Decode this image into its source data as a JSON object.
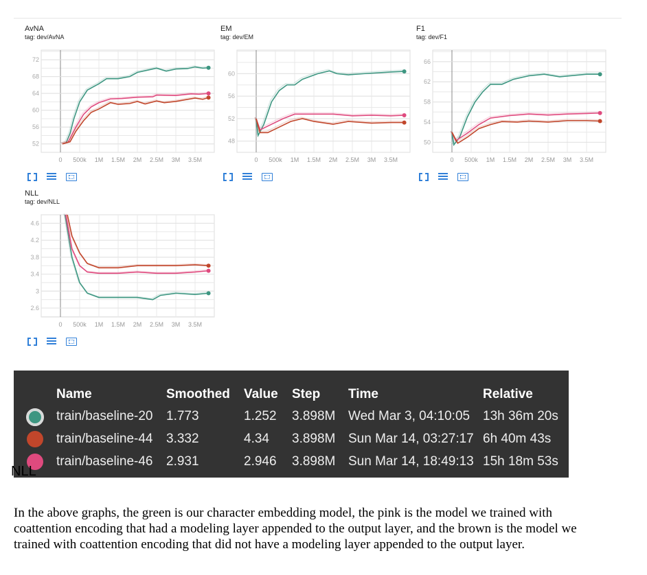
{
  "colors": {
    "green": "#3d9681",
    "brown": "#c1462b",
    "pink": "#df4a7e"
  },
  "chart_data": [
    {
      "type": "line",
      "title": "AvNA",
      "tag": "tag: dev/AvNA",
      "ylim": [
        50,
        74.3
      ],
      "yticks": [
        52,
        56,
        60,
        64,
        68,
        72
      ],
      "xlim": [
        -0.5,
        4.0
      ],
      "xticks": [
        0,
        0.5,
        1,
        1.5,
        2,
        2.5,
        3,
        3.5
      ],
      "xticklabels": [
        "0",
        "500k",
        "1M",
        "1.5M",
        "2M",
        "2.5M",
        "3M",
        "3.5M"
      ],
      "series": [
        {
          "name": "train/baseline-20",
          "color": "green",
          "points": [
            [
              0.05,
              52
            ],
            [
              0.15,
              52.3
            ],
            [
              0.25,
              54.5
            ],
            [
              0.35,
              58
            ],
            [
              0.5,
              62
            ],
            [
              0.7,
              64.8
            ],
            [
              1.0,
              66.3
            ],
            [
              1.2,
              67.5
            ],
            [
              1.5,
              67.5
            ],
            [
              1.8,
              68
            ],
            [
              2.0,
              69
            ],
            [
              2.3,
              69.6
            ],
            [
              2.5,
              70
            ],
            [
              2.75,
              69.3
            ],
            [
              3.0,
              69.8
            ],
            [
              3.3,
              69.9
            ],
            [
              3.5,
              70.3
            ],
            [
              3.7,
              70
            ],
            [
              3.85,
              70.1
            ]
          ]
        },
        {
          "name": "train/baseline-46",
          "color": "pink",
          "points": [
            [
              0.05,
              52
            ],
            [
              0.2,
              52.4
            ],
            [
              0.4,
              56
            ],
            [
              0.6,
              59
            ],
            [
              0.8,
              60.8
            ],
            [
              1.0,
              61.8
            ],
            [
              1.3,
              62.7
            ],
            [
              1.6,
              62.8
            ],
            [
              2.0,
              63.1
            ],
            [
              2.4,
              63.2
            ],
            [
              2.5,
              63.6
            ],
            [
              3.0,
              63.5
            ],
            [
              3.4,
              63.9
            ],
            [
              3.6,
              63.8
            ],
            [
              3.85,
              64
            ]
          ]
        },
        {
          "name": "train/baseline-44",
          "color": "brown",
          "points": [
            [
              0.05,
              52
            ],
            [
              0.25,
              52.5
            ],
            [
              0.4,
              55
            ],
            [
              0.6,
              57.5
            ],
            [
              0.8,
              59.5
            ],
            [
              1.0,
              60.3
            ],
            [
              1.3,
              61.8
            ],
            [
              1.5,
              61.4
            ],
            [
              1.8,
              61.6
            ],
            [
              2.0,
              62.1
            ],
            [
              2.2,
              61.5
            ],
            [
              2.5,
              62.2
            ],
            [
              2.7,
              61.8
            ],
            [
              3.0,
              62.1
            ],
            [
              3.5,
              62.9
            ],
            [
              3.7,
              62.6
            ],
            [
              3.85,
              63
            ]
          ]
        }
      ]
    },
    {
      "type": "line",
      "title": "EM",
      "tag": "tag: dev/EM",
      "ylim": [
        46,
        64.2
      ],
      "yticks": [
        48,
        52,
        56,
        60
      ],
      "xlim": [
        -0.5,
        4.0
      ],
      "xticks": [
        0,
        0.5,
        1,
        1.5,
        2,
        2.5,
        3,
        3.5
      ],
      "xticklabels": [
        "0",
        "500k",
        "1M",
        "1.5M",
        "2M",
        "2.5M",
        "3M",
        "3.5M"
      ],
      "series": [
        {
          "name": "train/baseline-20",
          "color": "green",
          "points": [
            [
              0.0,
              52
            ],
            [
              0.05,
              49
            ],
            [
              0.2,
              51
            ],
            [
              0.4,
              55
            ],
            [
              0.6,
              57
            ],
            [
              0.8,
              58
            ],
            [
              1.0,
              58
            ],
            [
              1.2,
              59
            ],
            [
              1.4,
              59.5
            ],
            [
              1.6,
              60
            ],
            [
              1.9,
              60.5
            ],
            [
              2.1,
              60
            ],
            [
              2.4,
              59.8
            ],
            [
              2.8,
              60
            ],
            [
              3.5,
              60.3
            ],
            [
              3.85,
              60.4
            ]
          ]
        },
        {
          "name": "train/baseline-46",
          "color": "pink",
          "points": [
            [
              0.0,
              52
            ],
            [
              0.1,
              50
            ],
            [
              0.4,
              51
            ],
            [
              0.7,
              52
            ],
            [
              1.0,
              52.8
            ],
            [
              1.5,
              52.8
            ],
            [
              2.0,
              52.8
            ],
            [
              2.5,
              52.5
            ],
            [
              3.0,
              52.6
            ],
            [
              3.5,
              52.5
            ],
            [
              3.85,
              52.6
            ]
          ]
        },
        {
          "name": "train/baseline-44",
          "color": "brown",
          "points": [
            [
              0.0,
              52
            ],
            [
              0.1,
              49.5
            ],
            [
              0.3,
              49.5
            ],
            [
              0.6,
              50.5
            ],
            [
              0.9,
              51.5
            ],
            [
              1.2,
              52
            ],
            [
              1.5,
              51.5
            ],
            [
              2.0,
              51
            ],
            [
              2.4,
              51.5
            ],
            [
              3.0,
              51.2
            ],
            [
              3.5,
              51.3
            ],
            [
              3.85,
              51.3
            ]
          ]
        }
      ]
    },
    {
      "type": "line",
      "title": "F1",
      "tag": "tag: dev/F1",
      "ylim": [
        48,
        68.3
      ],
      "yticks": [
        50,
        54,
        58,
        62,
        66
      ],
      "xlim": [
        -0.5,
        4.0
      ],
      "xticks": [
        0,
        0.5,
        1,
        1.5,
        2,
        2.5,
        3,
        3.5
      ],
      "xticklabels": [
        "0",
        "500k",
        "1M",
        "1.5M",
        "2M",
        "2.5M",
        "3M",
        "3.5M"
      ],
      "series": [
        {
          "name": "train/baseline-20",
          "color": "green",
          "points": [
            [
              0.0,
              52
            ],
            [
              0.05,
              49.5
            ],
            [
              0.2,
              51
            ],
            [
              0.4,
              55
            ],
            [
              0.6,
              58
            ],
            [
              0.8,
              60
            ],
            [
              1.0,
              61.5
            ],
            [
              1.3,
              61.5
            ],
            [
              1.6,
              62.5
            ],
            [
              2.0,
              63.2
            ],
            [
              2.4,
              63.5
            ],
            [
              2.8,
              63
            ],
            [
              3.5,
              63.5
            ],
            [
              3.85,
              63.5
            ]
          ]
        },
        {
          "name": "train/baseline-46",
          "color": "pink",
          "points": [
            [
              0.0,
              52
            ],
            [
              0.1,
              50.3
            ],
            [
              0.4,
              51.8
            ],
            [
              0.7,
              53.5
            ],
            [
              1.0,
              54.8
            ],
            [
              1.5,
              55.3
            ],
            [
              2.0,
              55.6
            ],
            [
              2.5,
              55.4
            ],
            [
              3.0,
              55.6
            ],
            [
              3.5,
              55.7
            ],
            [
              3.85,
              55.8
            ]
          ]
        },
        {
          "name": "train/baseline-44",
          "color": "brown",
          "points": [
            [
              0.0,
              52
            ],
            [
              0.15,
              49.8
            ],
            [
              0.4,
              51
            ],
            [
              0.7,
              52.7
            ],
            [
              1.0,
              53.5
            ],
            [
              1.3,
              54.1
            ],
            [
              1.7,
              54
            ],
            [
              2.0,
              54.2
            ],
            [
              2.5,
              54
            ],
            [
              3.0,
              54.3
            ],
            [
              3.5,
              54.3
            ],
            [
              3.85,
              54.2
            ]
          ]
        }
      ]
    },
    {
      "type": "line",
      "title": "NLL",
      "tag": "tag: dev/NLL",
      "ylim": [
        2.39,
        4.8
      ],
      "yticks": [
        2.6,
        3,
        3.4,
        3.8,
        4.2,
        4.6
      ],
      "xlim": [
        -0.5,
        4.0
      ],
      "xticks": [
        0,
        0.5,
        1,
        1.5,
        2,
        2.5,
        3,
        3.5
      ],
      "xticklabels": [
        "0",
        "500k",
        "1M",
        "1.5M",
        "2M",
        "2.5M",
        "3M",
        "3.5M"
      ],
      "series": [
        {
          "name": "train/baseline-20",
          "color": "green",
          "points": [
            [
              0.12,
              4.8
            ],
            [
              0.3,
              3.8
            ],
            [
              0.5,
              3.2
            ],
            [
              0.7,
              2.95
            ],
            [
              1.0,
              2.85
            ],
            [
              1.5,
              2.85
            ],
            [
              2.0,
              2.85
            ],
            [
              2.4,
              2.8
            ],
            [
              2.6,
              2.9
            ],
            [
              3.0,
              2.95
            ],
            [
              3.5,
              2.92
            ],
            [
              3.85,
              2.95
            ]
          ]
        },
        {
          "name": "train/baseline-44",
          "color": "brown",
          "points": [
            [
              0.18,
              4.8
            ],
            [
              0.3,
              4.3
            ],
            [
              0.5,
              3.9
            ],
            [
              0.7,
              3.65
            ],
            [
              1.0,
              3.55
            ],
            [
              1.5,
              3.55
            ],
            [
              2.0,
              3.6
            ],
            [
              2.5,
              3.6
            ],
            [
              3.0,
              3.6
            ],
            [
              3.5,
              3.62
            ],
            [
              3.85,
              3.6
            ]
          ]
        },
        {
          "name": "train/baseline-46",
          "color": "pink",
          "points": [
            [
              0.14,
              4.8
            ],
            [
              0.3,
              4.0
            ],
            [
              0.5,
              3.6
            ],
            [
              0.7,
              3.45
            ],
            [
              1.0,
              3.42
            ],
            [
              1.5,
              3.42
            ],
            [
              2.0,
              3.45
            ],
            [
              2.5,
              3.42
            ],
            [
              3.0,
              3.42
            ],
            [
              3.5,
              3.45
            ],
            [
              3.85,
              3.48
            ]
          ]
        }
      ]
    }
  ],
  "table": {
    "headers": {
      "name": "Name",
      "smoothed": "Smoothed",
      "value": "Value",
      "step": "Step",
      "time": "Time",
      "relative": "Relative"
    },
    "rows": [
      {
        "color": "green",
        "name": "train/baseline-20",
        "smoothed": "1.773",
        "value": "1.252",
        "step": "3.898M",
        "time": "Wed Mar 3, 04:10:05",
        "relative": "13h 36m 20s"
      },
      {
        "color": "brown",
        "name": "train/baseline-44",
        "smoothed": "3.332",
        "value": "4.34",
        "step": "3.898M",
        "time": "Sun Mar 14, 03:27:17",
        "relative": "6h 40m 43s"
      },
      {
        "color": "pink",
        "name": "train/baseline-46",
        "smoothed": "2.931",
        "value": "2.946",
        "step": "3.898M",
        "time": "Sun Mar 14, 18:49:13",
        "relative": "15h 18m 53s"
      }
    ]
  },
  "overlap_label": "NLL",
  "paragraph": "In the above graphs, the green is our character embedding model, the pink is the model we trained with coattention encoding that had a modeling layer appended to the output layer, and the brown is the model we trained with coattention encoding that did not have a modeling layer appended to the output layer."
}
